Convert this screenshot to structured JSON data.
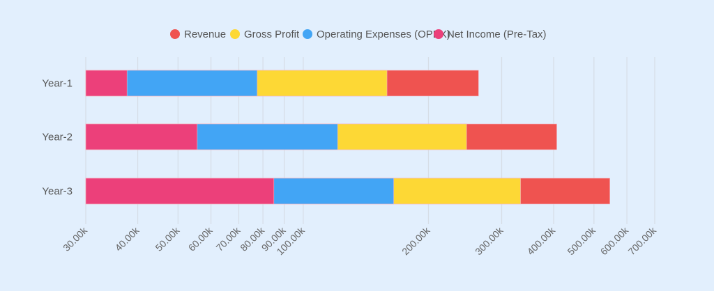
{
  "chart_data": {
    "type": "bar",
    "orientation": "horizontal",
    "stacked": false,
    "x_scale": "log",
    "xlim": [
      30000,
      700000
    ],
    "grid": true,
    "legend_position": "top",
    "categories": [
      "Year-1",
      "Year-2",
      "Year-3"
    ],
    "series": [
      {
        "name": "Revenue",
        "color": "#ef5350",
        "values": [
          264000,
          407000,
          546000
        ]
      },
      {
        "name": "Gross Profit",
        "color": "#fdd835",
        "values": [
          159000,
          247000,
          333000
        ]
      },
      {
        "name": "Operating Expenses (OPEX)",
        "color": "#42a5f5",
        "values": [
          77500,
          121000,
          165000
        ]
      },
      {
        "name": "Net Income (Pre-Tax)",
        "color": "#ec407a",
        "values": [
          37700,
          55600,
          85000
        ]
      }
    ],
    "ticks": [
      {
        "value": 30000,
        "label": "30.00k"
      },
      {
        "value": 40000,
        "label": "40.00k"
      },
      {
        "value": 50000,
        "label": "50.00k"
      },
      {
        "value": 60000,
        "label": "60.00k"
      },
      {
        "value": 70000,
        "label": "70.00k"
      },
      {
        "value": 80000,
        "label": "80.00k"
      },
      {
        "value": 90000,
        "label": "90.00k"
      },
      {
        "value": 100000,
        "label": "100.00k"
      },
      {
        "value": 200000,
        "label": "200.00k"
      },
      {
        "value": 300000,
        "label": "300.00k"
      },
      {
        "value": 400000,
        "label": "400.00k"
      },
      {
        "value": 500000,
        "label": "500.00k"
      },
      {
        "value": 600000,
        "label": "600.00k"
      },
      {
        "value": 700000,
        "label": "700.00k"
      }
    ]
  }
}
